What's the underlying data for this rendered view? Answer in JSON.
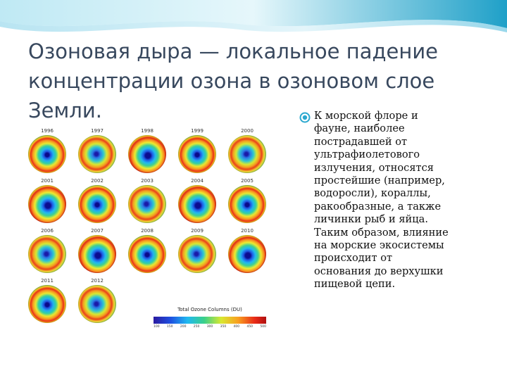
{
  "slide": {
    "title_lines": [
      "Озоновая дыра — локальное падение",
      "концентрации озона в озоновом слое",
      "Земли."
    ],
    "body_lines": [
      "К морской флоре и",
      "фауне, наиболее",
      "пострадавшей от",
      "ультрафиолетового",
      "излучения, относятся",
      "простейшие (например,",
      "водоросли), кораллы,",
      "ракообразные, а также",
      "личинки рыб и яйца.",
      "Таким образом, влияние",
      "на морские экосистемы",
      "происходит от",
      "основания до верхушки",
      "пищевой цепи."
    ]
  },
  "figure": {
    "years": [
      "1996",
      "1997",
      "1998",
      "1999",
      "2000",
      "2001",
      "2002",
      "2003",
      "2004",
      "2005",
      "2006",
      "2007",
      "2008",
      "2009",
      "2010",
      "2011",
      "2012"
    ],
    "scale_title": "Total Ozone Columns (DU)",
    "scale_ticks": [
      "100",
      "150",
      "200",
      "250",
      "300",
      "350",
      "400",
      "450",
      "500"
    ]
  },
  "colors": {
    "title": "#38485e",
    "accent_wave": "#2aa8cf",
    "bullet": "#2aa8cf"
  },
  "icons": {
    "bullet": "bullet-dot-icon"
  }
}
